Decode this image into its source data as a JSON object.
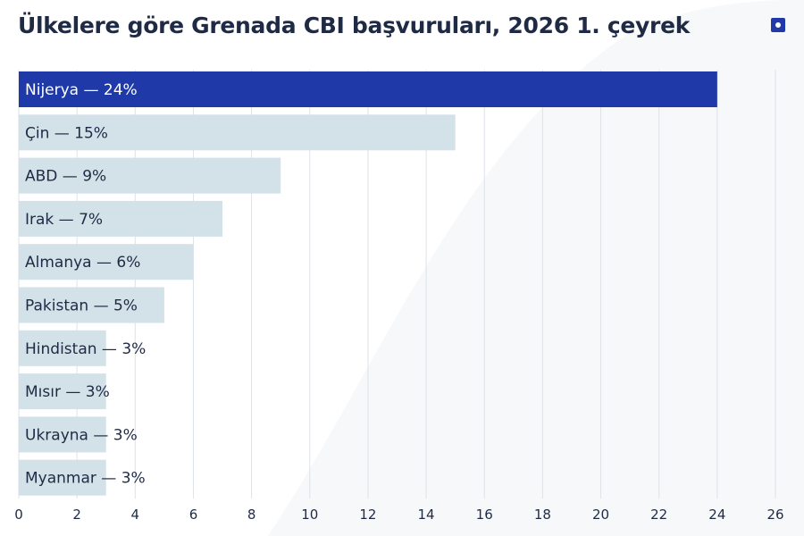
{
  "chart_data": {
    "type": "bar",
    "orientation": "horizontal",
    "title": "Ülkelere göre Grenada CBI başvuruları, 2026 1. çeyrek",
    "categories": [
      "Nijerya",
      "Çin",
      "ABD",
      "Irak",
      "Almanya",
      "Pakistan",
      "Hindistan",
      "Mısır",
      "Ukrayna",
      "Myanmar"
    ],
    "values": [
      24,
      15,
      9,
      7,
      6,
      5,
      3,
      3,
      3,
      3
    ],
    "bar_labels": [
      "Nijerya — 24%",
      "Çin — 15%",
      "ABD — 9%",
      "Irak — 7%",
      "Almanya — 6%",
      "Pakistan — 5%",
      "Hindistan — 3%",
      "Mısır — 3%",
      "Ukrayna — 3%",
      "Myanmar — 3%"
    ],
    "xlim": [
      0,
      26
    ],
    "xticks": [
      0,
      2,
      4,
      6,
      8,
      10,
      12,
      14,
      16,
      18,
      20,
      22,
      24,
      26
    ],
    "grid": true,
    "xlabel": "",
    "ylabel": "",
    "colors": {
      "highlight": "#1f3aa8",
      "bar": "#d3e1e8",
      "grid": "#dde3e8",
      "label_on_highlight": "#ffffff",
      "label": "#1f2a44",
      "tick": "#1f2a44"
    }
  }
}
